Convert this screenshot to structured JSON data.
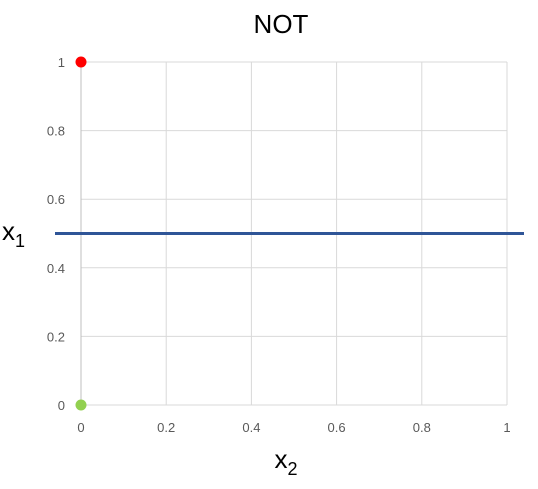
{
  "chart_data": {
    "type": "scatter",
    "title": "NOT",
    "xlabel": "x",
    "xlabel_subscript": "2",
    "ylabel": "x",
    "ylabel_subscript": "1",
    "xlim": [
      0,
      1
    ],
    "ylim": [
      0,
      1
    ],
    "x_ticks": [
      "0",
      "0.2",
      "0.4",
      "0.6",
      "0.8",
      "1"
    ],
    "y_ticks": [
      "0",
      "0.2",
      "0.4",
      "0.6",
      "0.8",
      "1"
    ],
    "grid": true,
    "points": [
      {
        "x": 0,
        "y": 1,
        "color": "#ff0000"
      },
      {
        "x": 0,
        "y": 0,
        "color": "#92d050"
      }
    ],
    "decision_line": {
      "y": 0.5,
      "color": "#2f5597"
    }
  }
}
